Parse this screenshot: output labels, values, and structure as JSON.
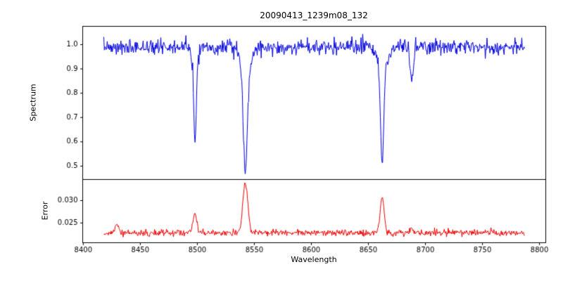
{
  "chart_data": {
    "type": "line",
    "title": "20090413_1239m08_132",
    "xlabel": "Wavelength",
    "xlim": [
      8399.5,
      8805.5
    ],
    "x_data_range": [
      8418,
      8787
    ],
    "x_step": 0.5,
    "x_ticks": [
      8400,
      8450,
      8500,
      8550,
      8600,
      8650,
      8700,
      8750,
      8800
    ],
    "x_tick_labels": [
      "8400",
      "8450",
      "8500",
      "8550",
      "8600",
      "8650",
      "8700",
      "8750",
      "8800"
    ],
    "seed": 7,
    "grid": false,
    "legend": "none",
    "panels": [
      {
        "name": "spectrum",
        "ylabel": "Spectrum",
        "color": "#0000dd",
        "ylim": [
          0.445,
          1.075
        ],
        "y_ticks": [
          0.5,
          0.6,
          0.7,
          0.8,
          0.9,
          1.0
        ],
        "y_tick_labels": [
          "0.5",
          "0.6",
          "0.7",
          "0.8",
          "0.9",
          "1.0"
        ],
        "baseline": 0.99,
        "noise_sigma": 0.015,
        "spike_probability": 0.02,
        "spike_amplitude": 0.03,
        "features": [
          {
            "center": 8498.0,
            "amplitude": -0.33,
            "width": 1.1
          },
          {
            "center": 8498.0,
            "amplitude": -0.06,
            "width": 3.0
          },
          {
            "center": 8542.1,
            "amplitude": -0.42,
            "width": 1.7
          },
          {
            "center": 8542.1,
            "amplitude": -0.1,
            "width": 4.5
          },
          {
            "center": 8662.1,
            "amplitude": -0.38,
            "width": 1.4
          },
          {
            "center": 8662.1,
            "amplitude": -0.09,
            "width": 4.0
          },
          {
            "center": 8688.0,
            "amplitude": -0.15,
            "width": 1.2
          }
        ]
      },
      {
        "name": "error",
        "ylabel": "Error",
        "color": "#ee0000",
        "ylim": [
          0.0206,
          0.0347
        ],
        "y_ticks": [
          0.025,
          0.03
        ],
        "y_tick_labels": [
          "0.025",
          "0.030"
        ],
        "baseline": 0.0228,
        "noise_sigma": 0.00035,
        "spike_probability": 0.015,
        "spike_amplitude": 0.0006,
        "features": [
          {
            "center": 8430.0,
            "amplitude": 0.0018,
            "width": 1.5
          },
          {
            "center": 8498.0,
            "amplitude": 0.0042,
            "width": 1.6
          },
          {
            "center": 8542.1,
            "amplitude": 0.0112,
            "width": 2.2
          },
          {
            "center": 8662.1,
            "amplitude": 0.0078,
            "width": 1.8
          },
          {
            "center": 8688.0,
            "amplitude": 0.001,
            "width": 1.2
          }
        ]
      }
    ]
  }
}
